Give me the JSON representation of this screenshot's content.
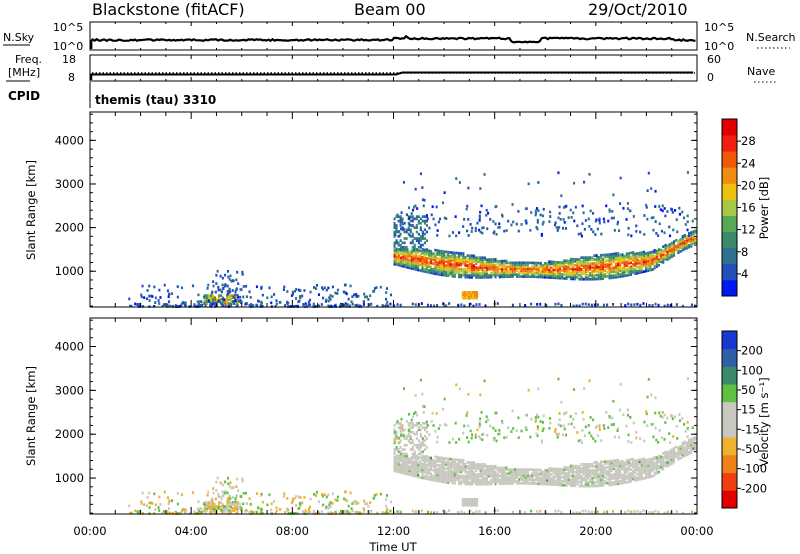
{
  "header": {
    "station": "Blackstone (fitACF)",
    "beam": "Beam 00",
    "date": "29/Oct/2010"
  },
  "top_panels": {
    "nsky": {
      "label": "N.Sky",
      "ticks": [
        "10^5",
        "10^0"
      ]
    },
    "nsearch": {
      "label": "N.Search",
      "ticks": [
        "10^5",
        "10^0"
      ]
    },
    "freq": {
      "label_line1": "Freq.",
      "label_line2": "[MHz]",
      "ticks": [
        "18",
        "8"
      ]
    },
    "nave": {
      "label": "Nave",
      "ticks": [
        "60",
        "0"
      ]
    },
    "cpid": {
      "label": "CPID",
      "value": "themis (tau) 3310"
    }
  },
  "colors": {
    "power_scale": [
      "#0018f0",
      "#2050b8",
      "#2f6f8f",
      "#3a8a6a",
      "#58a858",
      "#a8c848",
      "#f0c010",
      "#f08c10",
      "#f05808",
      "#f02010",
      "#e00000"
    ],
    "velocity_scale": [
      "#e00000",
      "#f04010",
      "#f08018",
      "#f0b030",
      "#c8c8c0",
      "#c8c8c0",
      "#60c040",
      "#3a8a6a",
      "#2f5fa8",
      "#1838d0"
    ]
  },
  "chart_data": [
    {
      "type": "heatmap",
      "panel": "power",
      "xlabel": "Time UT",
      "ylabel": "Slant Range [km]",
      "x_ticks": [
        "00:00",
        "04:00",
        "08:00",
        "12:00",
        "16:00",
        "20:00",
        "00:00"
      ],
      "xlim_hours": [
        0,
        24
      ],
      "y_ticks": [
        1000,
        2000,
        3000,
        4000
      ],
      "ylim": [
        180,
        4650
      ],
      "colorbar": {
        "label": "Power [dB]",
        "ticks": [
          4,
          8,
          12,
          16,
          20,
          24,
          28
        ],
        "range": [
          0,
          32
        ]
      },
      "regions": [
        {
          "name": "main-band",
          "start_hour": 12.0,
          "end_hour": 24.0,
          "range_km": [
            900,
            1700
          ],
          "value_db": [
            6,
            30
          ]
        },
        {
          "name": "upper-patches",
          "start_hour": 12.0,
          "end_hour": 23.8,
          "range_km": [
            1800,
            3300
          ],
          "value_db": [
            3,
            10
          ]
        },
        {
          "name": "near-range-patch",
          "start_hour": 4.5,
          "end_hour": 5.8,
          "range_km": [
            200,
            500
          ],
          "value_db": [
            8,
            26
          ]
        },
        {
          "name": "sparse-near-echoes",
          "start_hour": 1.5,
          "end_hour": 12.0,
          "range_km": [
            180,
            1100
          ],
          "value_db": [
            2,
            8
          ]
        }
      ]
    },
    {
      "type": "heatmap",
      "panel": "velocity",
      "xlabel": "Time UT",
      "ylabel": "Slant Range [km]",
      "x_ticks": [
        "00:00",
        "04:00",
        "08:00",
        "12:00",
        "16:00",
        "20:00",
        "00:00"
      ],
      "xlim_hours": [
        0,
        24
      ],
      "y_ticks": [
        1000,
        2000,
        3000,
        4000
      ],
      "ylim": [
        180,
        4650
      ],
      "colorbar": {
        "label": "Velocity [m s⁻¹]",
        "ticks": [
          200,
          100,
          50,
          15,
          -15,
          -50,
          -100,
          -200
        ]
      },
      "regions": [
        {
          "name": "main-band",
          "start_hour": 12.0,
          "end_hour": 24.0,
          "range_km": [
            900,
            1700
          ],
          "value_ms": [
            -15,
            15
          ]
        },
        {
          "name": "upper-patches",
          "start_hour": 12.0,
          "end_hour": 23.8,
          "range_km": [
            1800,
            3300
          ],
          "value_ms": [
            -15,
            50
          ]
        },
        {
          "name": "near-range-patch",
          "start_hour": 4.5,
          "end_hour": 5.8,
          "range_km": [
            200,
            500
          ],
          "value_ms": [
            -50,
            15
          ]
        }
      ]
    }
  ]
}
